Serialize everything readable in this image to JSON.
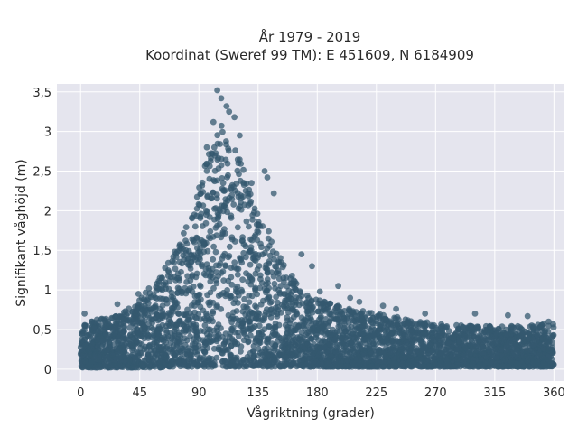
{
  "title_line1": "År 1979 - 2019",
  "title_line2": "Koordinat (Sweref 99 TM): E 451609, N 6184909",
  "colors": {
    "background": "#ffffff",
    "plot_background": "#e5e5ee",
    "grid": "#ffffff",
    "marker": "#34586f"
  },
  "chart_data": {
    "type": "scatter",
    "title": "År 1979 - 2019\nKoordinat (Sweref 99 TM): E 451609, N 6184909",
    "xlabel": "Vågriktning (grader)",
    "ylabel": "Signifikant våghöjd (m)",
    "xlim": [
      -18,
      368
    ],
    "ylim": [
      -0.15,
      3.6
    ],
    "xticks": [
      0,
      45,
      90,
      135,
      180,
      225,
      270,
      315,
      360
    ],
    "xtick_labels": [
      "0",
      "45",
      "90",
      "135",
      "180",
      "225",
      "270",
      "315",
      "360"
    ],
    "yticks": [
      0,
      0.5,
      1,
      1.5,
      2,
      2.5,
      3,
      3.5
    ],
    "ytick_labels": [
      "0",
      "0,5",
      "1",
      "1,5",
      "2",
      "2,5",
      "3",
      "3,5"
    ],
    "grid": true,
    "envelope": {
      "description": "approximate lower and upper bounds of the dense point cloud per direction",
      "x": [
        0,
        10,
        20,
        30,
        40,
        50,
        60,
        70,
        80,
        90,
        95,
        100,
        105,
        110,
        115,
        120,
        125,
        130,
        135,
        140,
        150,
        160,
        170,
        180,
        200,
        220,
        240,
        260,
        280,
        300,
        320,
        340,
        360
      ],
      "y_min": [
        0.02,
        0.02,
        0.02,
        0.02,
        0.02,
        0.02,
        0.02,
        0.03,
        0.03,
        0.03,
        0.03,
        0.03,
        0.03,
        0.03,
        0.03,
        0.03,
        0.03,
        0.03,
        0.03,
        0.03,
        0.03,
        0.03,
        0.03,
        0.03,
        0.03,
        0.03,
        0.03,
        0.03,
        0.03,
        0.03,
        0.03,
        0.03,
        0.03
      ],
      "y_max": [
        0.6,
        0.62,
        0.65,
        0.72,
        0.82,
        0.98,
        1.15,
        1.45,
        1.8,
        2.3,
        2.6,
        2.85,
        3.05,
        3.1,
        3.0,
        2.75,
        2.45,
        2.25,
        2.05,
        1.85,
        1.5,
        1.2,
        1.0,
        0.88,
        0.78,
        0.72,
        0.66,
        0.6,
        0.56,
        0.55,
        0.54,
        0.56,
        0.58
      ]
    },
    "outliers": {
      "x": [
        104,
        107,
        111,
        113,
        117,
        101,
        121,
        140,
        142,
        147,
        130,
        96,
        168,
        176,
        182,
        196,
        205,
        212,
        230,
        240,
        262,
        300,
        325,
        340,
        356,
        3,
        28,
        44,
        52
      ],
      "y": [
        3.52,
        3.42,
        3.32,
        3.25,
        3.18,
        3.12,
        2.95,
        2.5,
        2.42,
        2.22,
        2.35,
        2.8,
        1.45,
        1.3,
        0.98,
        1.05,
        0.9,
        0.85,
        0.8,
        0.76,
        0.7,
        0.7,
        0.68,
        0.67,
        0.6,
        0.7,
        0.82,
        0.95,
        1.02
      ]
    },
    "series": [
      {
        "color": "#34586f"
      }
    ]
  }
}
